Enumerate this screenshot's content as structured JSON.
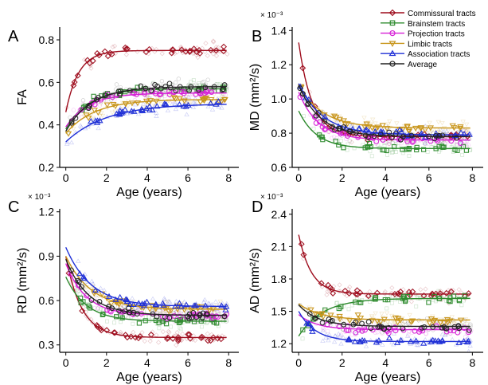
{
  "legend": [
    {
      "label": "Commissural tracts",
      "color": "#9e0d1d",
      "marker": "diamond"
    },
    {
      "label": "Brainstem tracts",
      "color": "#2e8b2e",
      "marker": "square"
    },
    {
      "label": "Projection tracts",
      "color": "#d61fd6",
      "marker": "circle"
    },
    {
      "label": "Limbic tracts",
      "color": "#c8951a",
      "marker": "triangle-down"
    },
    {
      "label": "Association tracts",
      "color": "#1f2fd6",
      "marker": "triangle-up"
    },
    {
      "label": "Average",
      "color": "#222222",
      "marker": "circle"
    }
  ],
  "chart_data": [
    {
      "panel": "A",
      "type": "scatter",
      "xlabel": "Age (years)",
      "ylabel": "FA",
      "ylabel_unit": "",
      "scale_note": "",
      "xlim": [
        -0.3,
        8.5
      ],
      "ylim": [
        0.2,
        0.86
      ],
      "xticks": [
        0,
        2,
        4,
        6,
        8
      ],
      "yticks": [
        0.2,
        0.4,
        0.6,
        0.8
      ],
      "ytick_labels": [
        "0.2",
        "0.4",
        "0.6",
        "0.8"
      ],
      "series": [
        {
          "name": "Commissural tracts",
          "fit": {
            "a": 0.75,
            "b": -0.29,
            "k": 1.6
          }
        },
        {
          "name": "Brainstem tracts",
          "fit": {
            "a": 0.57,
            "b": -0.19,
            "k": 0.9
          }
        },
        {
          "name": "Projection tracts",
          "fit": {
            "a": 0.55,
            "b": -0.16,
            "k": 0.9
          }
        },
        {
          "name": "Limbic tracts",
          "fit": {
            "a": 0.52,
            "b": -0.16,
            "k": 0.7
          }
        },
        {
          "name": "Association tracts",
          "fit": {
            "a": 0.5,
            "b": -0.18,
            "k": 0.5
          }
        },
        {
          "name": "Average",
          "fit": {
            "a": 0.58,
            "b": -0.21,
            "k": 0.8
          }
        }
      ]
    },
    {
      "panel": "B",
      "type": "scatter",
      "xlabel": "Age (years)",
      "ylabel": "MD",
      "ylabel_unit": "(mm²/s)",
      "scale_note": "× 10⁻³",
      "xlim": [
        -0.3,
        8.5
      ],
      "ylim": [
        0.6,
        1.42
      ],
      "xticks": [
        0,
        2,
        4,
        6,
        8
      ],
      "yticks": [
        0.6,
        0.8,
        1.0,
        1.2,
        1.4
      ],
      "ytick_labels": [
        "0.6",
        "0.8",
        "1.0",
        "1.2",
        "1.4"
      ],
      "series": [
        {
          "name": "Commissural tracts",
          "fit": {
            "a": 0.78,
            "b": 0.55,
            "k": 1.6
          }
        },
        {
          "name": "Brainstem tracts",
          "fit": {
            "a": 0.71,
            "b": 0.22,
            "k": 1.2
          }
        },
        {
          "name": "Projection tracts",
          "fit": {
            "a": 0.76,
            "b": 0.28,
            "k": 1.1
          }
        },
        {
          "name": "Limbic tracts",
          "fit": {
            "a": 0.83,
            "b": 0.25,
            "k": 0.9
          }
        },
        {
          "name": "Association tracts",
          "fit": {
            "a": 0.79,
            "b": 0.3,
            "k": 0.9
          }
        },
        {
          "name": "Average",
          "fit": {
            "a": 0.78,
            "b": 0.3,
            "k": 1.0
          }
        }
      ]
    },
    {
      "panel": "C",
      "type": "scatter",
      "xlabel": "Age (years)",
      "ylabel": "RD",
      "ylabel_unit": "(mm²/s)",
      "scale_note": "× 10⁻³",
      "xlim": [
        -0.3,
        8.5
      ],
      "ylim": [
        0.25,
        1.22
      ],
      "xticks": [
        0,
        2,
        4,
        6,
        8
      ],
      "yticks": [
        0.3,
        0.6,
        0.9,
        1.2
      ],
      "ytick_labels": [
        "0.3",
        "0.6",
        "0.9",
        "1.2"
      ],
      "series": [
        {
          "name": "Commissural tracts",
          "fit": {
            "a": 0.35,
            "b": 0.55,
            "k": 1.3
          }
        },
        {
          "name": "Brainstem tracts",
          "fit": {
            "a": 0.46,
            "b": 0.3,
            "k": 1.0
          }
        },
        {
          "name": "Projection tracts",
          "fit": {
            "a": 0.5,
            "b": 0.35,
            "k": 1.0
          }
        },
        {
          "name": "Limbic tracts",
          "fit": {
            "a": 0.54,
            "b": 0.36,
            "k": 0.8
          }
        },
        {
          "name": "Association tracts",
          "fit": {
            "a": 0.56,
            "b": 0.4,
            "k": 0.8
          }
        },
        {
          "name": "Average",
          "fit": {
            "a": 0.5,
            "b": 0.38,
            "k": 0.9
          }
        }
      ]
    },
    {
      "panel": "D",
      "type": "scatter",
      "xlabel": "Age (years)",
      "ylabel": "AD",
      "ylabel_unit": "(mm²/s)",
      "scale_note": "× 10⁻³",
      "xlim": [
        -0.3,
        8.5
      ],
      "ylim": [
        1.12,
        2.45
      ],
      "xticks": [
        0,
        2,
        4,
        6,
        8
      ],
      "yticks": [
        1.2,
        1.5,
        1.8,
        2.1,
        2.4
      ],
      "ytick_labels": [
        "1.2",
        "1.5",
        "1.8",
        "2.1",
        "2.4"
      ],
      "series": [
        {
          "name": "Commissural tracts",
          "fit": {
            "a": 1.66,
            "b": 0.55,
            "k": 1.7
          }
        },
        {
          "name": "Brainstem tracts",
          "fit": {
            "a": 1.62,
            "b": -0.35,
            "k": 0.9
          }
        },
        {
          "name": "Projection tracts",
          "fit": {
            "a": 1.33,
            "b": 0.14,
            "k": 1.2
          }
        },
        {
          "name": "Limbic tracts",
          "fit": {
            "a": 1.42,
            "b": 0.15,
            "k": 1.0
          }
        },
        {
          "name": "Association tracts",
          "fit": {
            "a": 1.22,
            "b": 0.28,
            "k": 1.3
          }
        },
        {
          "name": "Average",
          "fit": {
            "a": 1.36,
            "b": 0.2,
            "k": 1.1
          }
        }
      ]
    }
  ]
}
